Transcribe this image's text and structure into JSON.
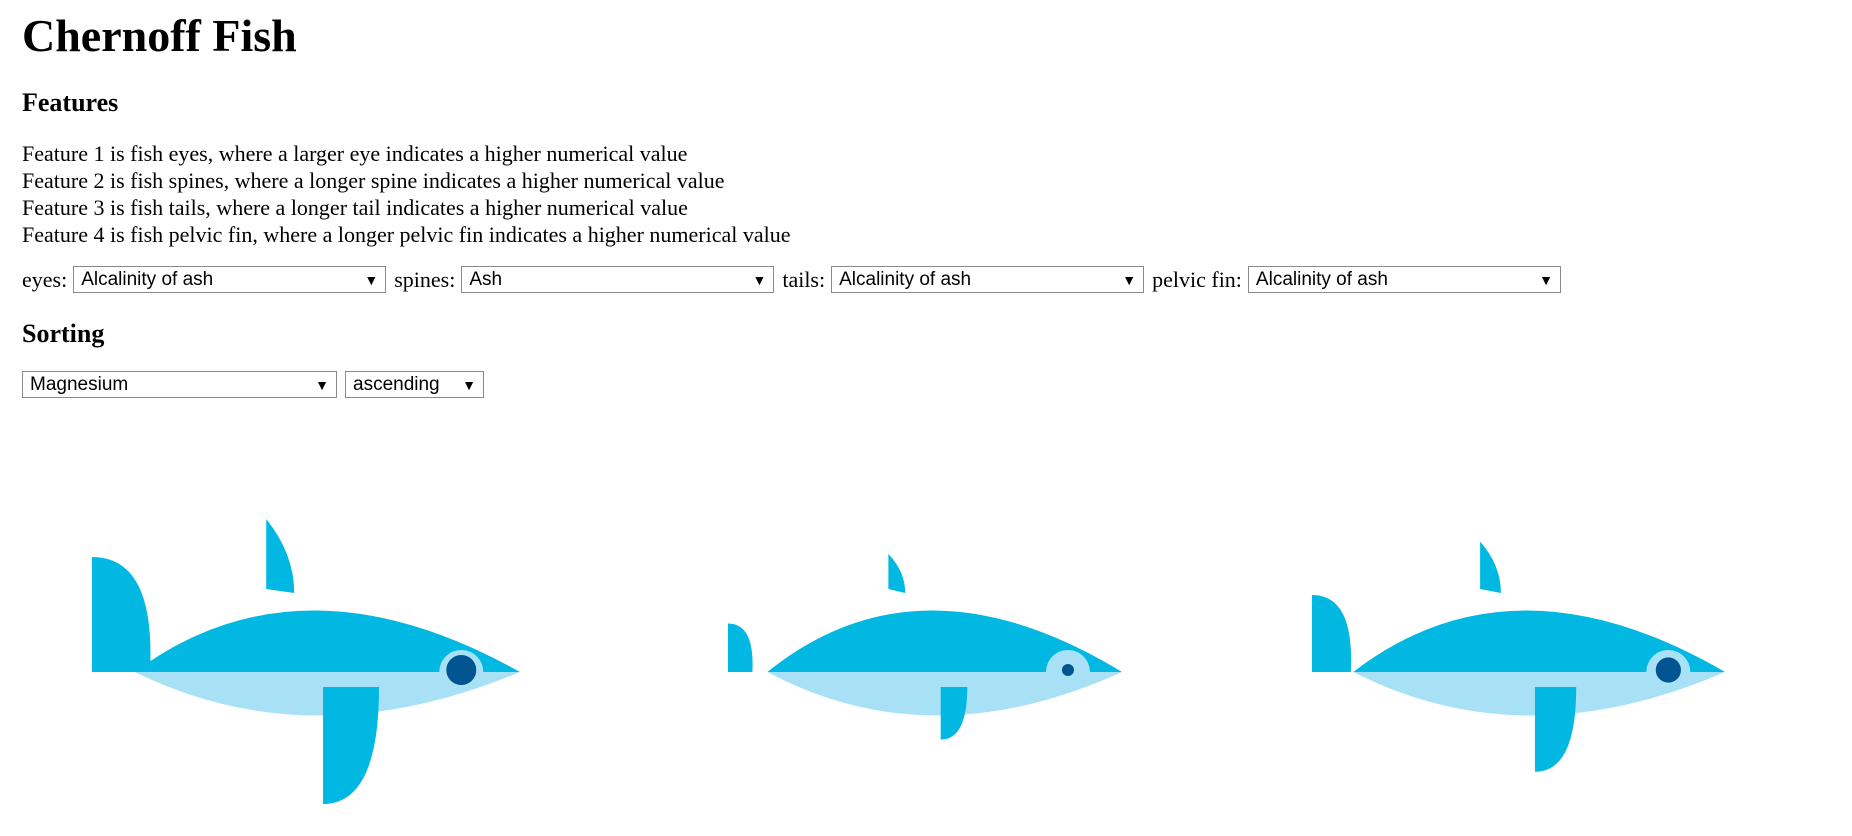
{
  "page_title": "Chernoff Fish",
  "features": {
    "heading": "Features",
    "lines": [
      "Feature 1 is fish eyes, where a larger eye indicates a higher numerical value",
      "Feature 2 is fish spines, where a longer spine indicates a higher numerical value",
      "Feature 3 is fish tails, where a longer tail indicates a higher numerical value",
      "Feature 4 is fish pelvic fin, where a longer pelvic fin indicates a higher numerical value"
    ],
    "controls": [
      {
        "label": "eyes:",
        "value": "Alcalinity of ash"
      },
      {
        "label": "spines:",
        "value": "Ash"
      },
      {
        "label": "tails:",
        "value": "Alcalinity of ash"
      },
      {
        "label": "pelvic fin:",
        "value": "Alcalinity of ash"
      }
    ]
  },
  "sorting": {
    "heading": "Sorting",
    "sort_by": "Magnesium",
    "order": "ascending"
  },
  "colors": {
    "body": "#00b8e2",
    "belly": "#a8e1f6",
    "eye_white": "#a8e1f6",
    "pupil": "#00548f"
  },
  "fish": [
    {
      "eye": 1.0,
      "spine": 1.0,
      "tail": 1.0,
      "pelvic": 1.0
    },
    {
      "eye": 0.25,
      "spine": 0.3,
      "tail": 0.3,
      "pelvic": 0.3
    },
    {
      "eye": 0.8,
      "spine": 0.55,
      "tail": 0.6,
      "pelvic": 0.65
    }
  ]
}
